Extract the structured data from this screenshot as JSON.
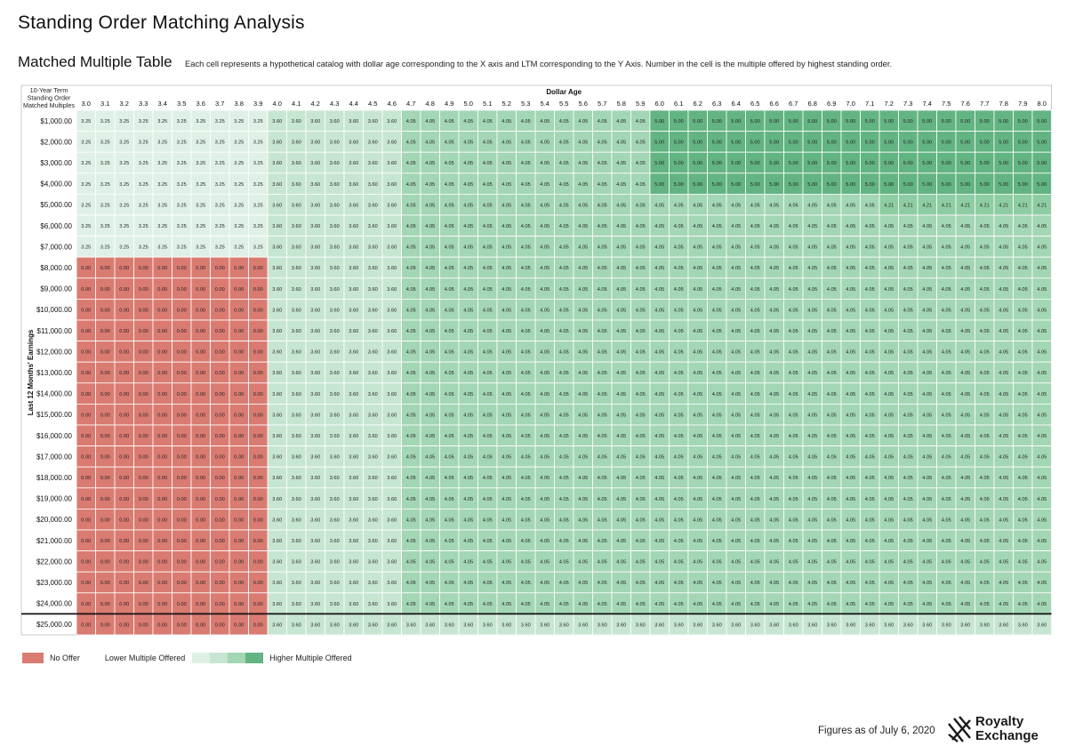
{
  "title": "Standing Order Matching Analysis",
  "subtitle": "Matched Multiple Table",
  "description": "Each cell represents a hypothetical catalog with dollar age corresponding to the X axis and LTM corresponding to the Y Axis. Number in the cell is the multiple offered by highest standing order.",
  "legend": {
    "no_offer": "No Offer",
    "lower": "Lower Multiple Offered",
    "higher": "Higher Multiple Offered"
  },
  "footer": "Figures as of July 6, 2020",
  "logo": {
    "line1": "Royalty",
    "line2": "Exchange"
  },
  "colors": {
    "0": "#da7b72",
    "3.25": "#dff1e6",
    "3.6": "#c7e6d2",
    "4.05": "#a3d6b5",
    "4.21": "#8ecda3",
    "5": "#63b483",
    "header_bg": "#ffffff",
    "grid": "#ffffff"
  },
  "chart_data": {
    "type": "heatmap",
    "corner_label": [
      "10-Year Term",
      "Standing Order",
      "Matched Multiples"
    ],
    "xlabel": "Dollar Age",
    "ylabel": "Last 12 Months' Earnings",
    "x": [
      "3.0",
      "3.1",
      "3.2",
      "3.3",
      "3.4",
      "3.5",
      "3.6",
      "3.7",
      "3.8",
      "3.9",
      "4.0",
      "4.1",
      "4.2",
      "4.3",
      "4.4",
      "4.5",
      "4.6",
      "4.7",
      "4.8",
      "4.9",
      "5.0",
      "5.1",
      "5.2",
      "5.3",
      "5.4",
      "5.5",
      "5.6",
      "5.7",
      "5.8",
      "5.9",
      "6.0",
      "6.1",
      "6.2",
      "6.3",
      "6.4",
      "6.5",
      "6.6",
      "6.7",
      "6.8",
      "6.9",
      "7.0",
      "7.1",
      "7.2",
      "7.3",
      "7.4",
      "7.5",
      "7.6",
      "7.7",
      "7.8",
      "7.9",
      "8.0"
    ],
    "y": [
      "$1,000.00",
      "$2,000.00",
      "$3,000.00",
      "$4,000.00",
      "$5,000.00",
      "$6,000.00",
      "$7,000.00",
      "$8,000.00",
      "$9,000.00",
      "$10,000.00",
      "$11,000.00",
      "$12,000.00",
      "$13,000.00",
      "$14,000.00",
      "$15,000.00",
      "$16,000.00",
      "$17,000.00",
      "$18,000.00",
      "$19,000.00",
      "$20,000.00",
      "$21,000.00",
      "$22,000.00",
      "$23,000.00",
      "$24,000.00",
      "$25,000.00"
    ],
    "values": [
      [
        3.25,
        3.25,
        3.25,
        3.25,
        3.25,
        3.25,
        3.25,
        3.25,
        3.25,
        3.25,
        3.6,
        3.6,
        3.6,
        3.6,
        3.6,
        3.6,
        3.6,
        4.05,
        4.05,
        4.05,
        4.05,
        4.05,
        4.05,
        4.05,
        4.05,
        4.05,
        4.05,
        4.05,
        4.05,
        4.05,
        5.0,
        5.0,
        5.0,
        5.0,
        5.0,
        5.0,
        5.0,
        5.0,
        5.0,
        5.0,
        5.0,
        5.0,
        5.0,
        5.0,
        5.0,
        5.0,
        5.0,
        5.0,
        5.0,
        5.0,
        5.0
      ],
      [
        3.25,
        3.25,
        3.25,
        3.25,
        3.25,
        3.25,
        3.25,
        3.25,
        3.25,
        3.25,
        3.6,
        3.6,
        3.6,
        3.6,
        3.6,
        3.6,
        3.6,
        4.05,
        4.05,
        4.05,
        4.05,
        4.05,
        4.05,
        4.05,
        4.05,
        4.05,
        4.05,
        4.05,
        4.05,
        4.05,
        5.0,
        5.0,
        5.0,
        5.0,
        5.0,
        5.0,
        5.0,
        5.0,
        5.0,
        5.0,
        5.0,
        5.0,
        5.0,
        5.0,
        5.0,
        5.0,
        5.0,
        5.0,
        5.0,
        5.0,
        5.0
      ],
      [
        3.25,
        3.25,
        3.25,
        3.25,
        3.25,
        3.25,
        3.25,
        3.25,
        3.25,
        3.25,
        3.6,
        3.6,
        3.6,
        3.6,
        3.6,
        3.6,
        3.6,
        4.05,
        4.05,
        4.05,
        4.05,
        4.05,
        4.05,
        4.05,
        4.05,
        4.05,
        4.05,
        4.05,
        4.05,
        4.05,
        5.0,
        5.0,
        5.0,
        5.0,
        5.0,
        5.0,
        5.0,
        5.0,
        5.0,
        5.0,
        5.0,
        5.0,
        5.0,
        5.0,
        5.0,
        5.0,
        5.0,
        5.0,
        5.0,
        5.0,
        5.0
      ],
      [
        3.25,
        3.25,
        3.25,
        3.25,
        3.25,
        3.25,
        3.25,
        3.25,
        3.25,
        3.25,
        3.6,
        3.6,
        3.6,
        3.6,
        3.6,
        3.6,
        3.6,
        4.05,
        4.05,
        4.05,
        4.05,
        4.05,
        4.05,
        4.05,
        4.05,
        4.05,
        4.05,
        4.05,
        4.05,
        4.05,
        5.0,
        5.0,
        5.0,
        5.0,
        5.0,
        5.0,
        5.0,
        5.0,
        5.0,
        5.0,
        5.0,
        5.0,
        5.0,
        5.0,
        5.0,
        5.0,
        5.0,
        5.0,
        5.0,
        5.0,
        5.0
      ],
      [
        3.25,
        3.25,
        3.25,
        3.25,
        3.25,
        3.25,
        3.25,
        3.25,
        3.25,
        3.25,
        3.6,
        3.6,
        3.6,
        3.6,
        3.6,
        3.6,
        3.6,
        4.05,
        4.05,
        4.05,
        4.05,
        4.05,
        4.05,
        4.05,
        4.05,
        4.05,
        4.05,
        4.05,
        4.05,
        4.05,
        4.05,
        4.05,
        4.05,
        4.05,
        4.05,
        4.05,
        4.05,
        4.05,
        4.05,
        4.05,
        4.05,
        4.05,
        4.21,
        4.21,
        4.21,
        4.21,
        4.21,
        4.21,
        4.21,
        4.21,
        4.21
      ],
      [
        3.25,
        3.25,
        3.25,
        3.25,
        3.25,
        3.25,
        3.25,
        3.25,
        3.25,
        3.25,
        3.6,
        3.6,
        3.6,
        3.6,
        3.6,
        3.6,
        3.6,
        4.05,
        4.05,
        4.05,
        4.05,
        4.05,
        4.05,
        4.05,
        4.05,
        4.05,
        4.05,
        4.05,
        4.05,
        4.05,
        4.05,
        4.05,
        4.05,
        4.05,
        4.05,
        4.05,
        4.05,
        4.05,
        4.05,
        4.05,
        4.05,
        4.05,
        4.05,
        4.05,
        4.05,
        4.05,
        4.05,
        4.05,
        4.05,
        4.05,
        4.05
      ],
      [
        3.25,
        3.25,
        3.25,
        3.25,
        3.25,
        3.25,
        3.25,
        3.25,
        3.25,
        3.25,
        3.6,
        3.6,
        3.6,
        3.6,
        3.6,
        3.6,
        3.6,
        4.05,
        4.05,
        4.05,
        4.05,
        4.05,
        4.05,
        4.05,
        4.05,
        4.05,
        4.05,
        4.05,
        4.05,
        4.05,
        4.05,
        4.05,
        4.05,
        4.05,
        4.05,
        4.05,
        4.05,
        4.05,
        4.05,
        4.05,
        4.05,
        4.05,
        4.05,
        4.05,
        4.05,
        4.05,
        4.05,
        4.05,
        4.05,
        4.05,
        4.05
      ],
      [
        0.0,
        0.0,
        0.0,
        0.0,
        0.0,
        0.0,
        0.0,
        0.0,
        0.0,
        0.0,
        3.6,
        3.6,
        3.6,
        3.6,
        3.6,
        3.6,
        3.6,
        4.05,
        4.05,
        4.05,
        4.05,
        4.05,
        4.05,
        4.05,
        4.05,
        4.05,
        4.05,
        4.05,
        4.05,
        4.05,
        4.05,
        4.05,
        4.05,
        4.05,
        4.05,
        4.05,
        4.05,
        4.05,
        4.05,
        4.05,
        4.05,
        4.05,
        4.05,
        4.05,
        4.05,
        4.05,
        4.05,
        4.05,
        4.05,
        4.05,
        4.05
      ],
      [
        0.0,
        0.0,
        0.0,
        0.0,
        0.0,
        0.0,
        0.0,
        0.0,
        0.0,
        0.0,
        3.6,
        3.6,
        3.6,
        3.6,
        3.6,
        3.6,
        3.6,
        4.05,
        4.05,
        4.05,
        4.05,
        4.05,
        4.05,
        4.05,
        4.05,
        4.05,
        4.05,
        4.05,
        4.05,
        4.05,
        4.05,
        4.05,
        4.05,
        4.05,
        4.05,
        4.05,
        4.05,
        4.05,
        4.05,
        4.05,
        4.05,
        4.05,
        4.05,
        4.05,
        4.05,
        4.05,
        4.05,
        4.05,
        4.05,
        4.05,
        4.05
      ],
      [
        0.0,
        0.0,
        0.0,
        0.0,
        0.0,
        0.0,
        0.0,
        0.0,
        0.0,
        0.0,
        3.6,
        3.6,
        3.6,
        3.6,
        3.6,
        3.6,
        3.6,
        4.05,
        4.05,
        4.05,
        4.05,
        4.05,
        4.05,
        4.05,
        4.05,
        4.05,
        4.05,
        4.05,
        4.05,
        4.05,
        4.05,
        4.05,
        4.05,
        4.05,
        4.05,
        4.05,
        4.05,
        4.05,
        4.05,
        4.05,
        4.05,
        4.05,
        4.05,
        4.05,
        4.05,
        4.05,
        4.05,
        4.05,
        4.05,
        4.05,
        4.05
      ],
      [
        0.0,
        0.0,
        0.0,
        0.0,
        0.0,
        0.0,
        0.0,
        0.0,
        0.0,
        0.0,
        3.6,
        3.6,
        3.6,
        3.6,
        3.6,
        3.6,
        3.6,
        4.05,
        4.05,
        4.05,
        4.05,
        4.05,
        4.05,
        4.05,
        4.05,
        4.05,
        4.05,
        4.05,
        4.05,
        4.05,
        4.05,
        4.05,
        4.05,
        4.05,
        4.05,
        4.05,
        4.05,
        4.05,
        4.05,
        4.05,
        4.05,
        4.05,
        4.05,
        4.05,
        4.05,
        4.05,
        4.05,
        4.05,
        4.05,
        4.05,
        4.05
      ],
      [
        0.0,
        0.0,
        0.0,
        0.0,
        0.0,
        0.0,
        0.0,
        0.0,
        0.0,
        0.0,
        3.6,
        3.6,
        3.6,
        3.6,
        3.6,
        3.6,
        3.6,
        4.05,
        4.05,
        4.05,
        4.05,
        4.05,
        4.05,
        4.05,
        4.05,
        4.05,
        4.05,
        4.05,
        4.05,
        4.05,
        4.05,
        4.05,
        4.05,
        4.05,
        4.05,
        4.05,
        4.05,
        4.05,
        4.05,
        4.05,
        4.05,
        4.05,
        4.05,
        4.05,
        4.05,
        4.05,
        4.05,
        4.05,
        4.05,
        4.05,
        4.05
      ],
      [
        0.0,
        0.0,
        0.0,
        0.0,
        0.0,
        0.0,
        0.0,
        0.0,
        0.0,
        0.0,
        3.6,
        3.6,
        3.6,
        3.6,
        3.6,
        3.6,
        3.6,
        4.05,
        4.05,
        4.05,
        4.05,
        4.05,
        4.05,
        4.05,
        4.05,
        4.05,
        4.05,
        4.05,
        4.05,
        4.05,
        4.05,
        4.05,
        4.05,
        4.05,
        4.05,
        4.05,
        4.05,
        4.05,
        4.05,
        4.05,
        4.05,
        4.05,
        4.05,
        4.05,
        4.05,
        4.05,
        4.05,
        4.05,
        4.05,
        4.05,
        4.05
      ],
      [
        0.0,
        0.0,
        0.0,
        0.0,
        0.0,
        0.0,
        0.0,
        0.0,
        0.0,
        0.0,
        3.6,
        3.6,
        3.6,
        3.6,
        3.6,
        3.6,
        3.6,
        4.05,
        4.05,
        4.05,
        4.05,
        4.05,
        4.05,
        4.05,
        4.05,
        4.05,
        4.05,
        4.05,
        4.05,
        4.05,
        4.05,
        4.05,
        4.05,
        4.05,
        4.05,
        4.05,
        4.05,
        4.05,
        4.05,
        4.05,
        4.05,
        4.05,
        4.05,
        4.05,
        4.05,
        4.05,
        4.05,
        4.05,
        4.05,
        4.05,
        4.05
      ],
      [
        0.0,
        0.0,
        0.0,
        0.0,
        0.0,
        0.0,
        0.0,
        0.0,
        0.0,
        0.0,
        3.6,
        3.6,
        3.6,
        3.6,
        3.6,
        3.6,
        3.6,
        4.05,
        4.05,
        4.05,
        4.05,
        4.05,
        4.05,
        4.05,
        4.05,
        4.05,
        4.05,
        4.05,
        4.05,
        4.05,
        4.05,
        4.05,
        4.05,
        4.05,
        4.05,
        4.05,
        4.05,
        4.05,
        4.05,
        4.05,
        4.05,
        4.05,
        4.05,
        4.05,
        4.05,
        4.05,
        4.05,
        4.05,
        4.05,
        4.05,
        4.05
      ],
      [
        0.0,
        0.0,
        0.0,
        0.0,
        0.0,
        0.0,
        0.0,
        0.0,
        0.0,
        0.0,
        3.6,
        3.6,
        3.6,
        3.6,
        3.6,
        3.6,
        3.6,
        4.05,
        4.05,
        4.05,
        4.05,
        4.05,
        4.05,
        4.05,
        4.05,
        4.05,
        4.05,
        4.05,
        4.05,
        4.05,
        4.05,
        4.05,
        4.05,
        4.05,
        4.05,
        4.05,
        4.05,
        4.05,
        4.05,
        4.05,
        4.05,
        4.05,
        4.05,
        4.05,
        4.05,
        4.05,
        4.05,
        4.05,
        4.05,
        4.05,
        4.05
      ],
      [
        0.0,
        0.0,
        0.0,
        0.0,
        0.0,
        0.0,
        0.0,
        0.0,
        0.0,
        0.0,
        3.6,
        3.6,
        3.6,
        3.6,
        3.6,
        3.6,
        3.6,
        4.05,
        4.05,
        4.05,
        4.05,
        4.05,
        4.05,
        4.05,
        4.05,
        4.05,
        4.05,
        4.05,
        4.05,
        4.05,
        4.05,
        4.05,
        4.05,
        4.05,
        4.05,
        4.05,
        4.05,
        4.05,
        4.05,
        4.05,
        4.05,
        4.05,
        4.05,
        4.05,
        4.05,
        4.05,
        4.05,
        4.05,
        4.05,
        4.05,
        4.05
      ],
      [
        0.0,
        0.0,
        0.0,
        0.0,
        0.0,
        0.0,
        0.0,
        0.0,
        0.0,
        0.0,
        3.6,
        3.6,
        3.6,
        3.6,
        3.6,
        3.6,
        3.6,
        4.05,
        4.05,
        4.05,
        4.05,
        4.05,
        4.05,
        4.05,
        4.05,
        4.05,
        4.05,
        4.05,
        4.05,
        4.05,
        4.05,
        4.05,
        4.05,
        4.05,
        4.05,
        4.05,
        4.05,
        4.05,
        4.05,
        4.05,
        4.05,
        4.05,
        4.05,
        4.05,
        4.05,
        4.05,
        4.05,
        4.05,
        4.05,
        4.05,
        4.05
      ],
      [
        0.0,
        0.0,
        0.0,
        0.0,
        0.0,
        0.0,
        0.0,
        0.0,
        0.0,
        0.0,
        3.6,
        3.6,
        3.6,
        3.6,
        3.6,
        3.6,
        3.6,
        4.05,
        4.05,
        4.05,
        4.05,
        4.05,
        4.05,
        4.05,
        4.05,
        4.05,
        4.05,
        4.05,
        4.05,
        4.05,
        4.05,
        4.05,
        4.05,
        4.05,
        4.05,
        4.05,
        4.05,
        4.05,
        4.05,
        4.05,
        4.05,
        4.05,
        4.05,
        4.05,
        4.05,
        4.05,
        4.05,
        4.05,
        4.05,
        4.05,
        4.05
      ],
      [
        0.0,
        0.0,
        0.0,
        0.0,
        0.0,
        0.0,
        0.0,
        0.0,
        0.0,
        0.0,
        3.6,
        3.6,
        3.6,
        3.6,
        3.6,
        3.6,
        3.6,
        4.05,
        4.05,
        4.05,
        4.05,
        4.05,
        4.05,
        4.05,
        4.05,
        4.05,
        4.05,
        4.05,
        4.05,
        4.05,
        4.05,
        4.05,
        4.05,
        4.05,
        4.05,
        4.05,
        4.05,
        4.05,
        4.05,
        4.05,
        4.05,
        4.05,
        4.05,
        4.05,
        4.05,
        4.05,
        4.05,
        4.05,
        4.05,
        4.05,
        4.05
      ],
      [
        0.0,
        0.0,
        0.0,
        0.0,
        0.0,
        0.0,
        0.0,
        0.0,
        0.0,
        0.0,
        3.6,
        3.6,
        3.6,
        3.6,
        3.6,
        3.6,
        3.6,
        4.05,
        4.05,
        4.05,
        4.05,
        4.05,
        4.05,
        4.05,
        4.05,
        4.05,
        4.05,
        4.05,
        4.05,
        4.05,
        4.05,
        4.05,
        4.05,
        4.05,
        4.05,
        4.05,
        4.05,
        4.05,
        4.05,
        4.05,
        4.05,
        4.05,
        4.05,
        4.05,
        4.05,
        4.05,
        4.05,
        4.05,
        4.05,
        4.05,
        4.05
      ],
      [
        0.0,
        0.0,
        0.0,
        0.0,
        0.0,
        0.0,
        0.0,
        0.0,
        0.0,
        0.0,
        3.6,
        3.6,
        3.6,
        3.6,
        3.6,
        3.6,
        3.6,
        4.05,
        4.05,
        4.05,
        4.05,
        4.05,
        4.05,
        4.05,
        4.05,
        4.05,
        4.05,
        4.05,
        4.05,
        4.05,
        4.05,
        4.05,
        4.05,
        4.05,
        4.05,
        4.05,
        4.05,
        4.05,
        4.05,
        4.05,
        4.05,
        4.05,
        4.05,
        4.05,
        4.05,
        4.05,
        4.05,
        4.05,
        4.05,
        4.05,
        4.05
      ],
      [
        0.0,
        0.0,
        0.0,
        0.0,
        0.0,
        0.0,
        0.0,
        0.0,
        0.0,
        0.0,
        3.6,
        3.6,
        3.6,
        3.6,
        3.6,
        3.6,
        3.6,
        4.05,
        4.05,
        4.05,
        4.05,
        4.05,
        4.05,
        4.05,
        4.05,
        4.05,
        4.05,
        4.05,
        4.05,
        4.05,
        4.05,
        4.05,
        4.05,
        4.05,
        4.05,
        4.05,
        4.05,
        4.05,
        4.05,
        4.05,
        4.05,
        4.05,
        4.05,
        4.05,
        4.05,
        4.05,
        4.05,
        4.05,
        4.05,
        4.05,
        4.05
      ],
      [
        0.0,
        0.0,
        0.0,
        0.0,
        0.0,
        0.0,
        0.0,
        0.0,
        0.0,
        0.0,
        3.6,
        3.6,
        3.6,
        3.6,
        3.6,
        3.6,
        3.6,
        4.05,
        4.05,
        4.05,
        4.05,
        4.05,
        4.05,
        4.05,
        4.05,
        4.05,
        4.05,
        4.05,
        4.05,
        4.05,
        4.05,
        4.05,
        4.05,
        4.05,
        4.05,
        4.05,
        4.05,
        4.05,
        4.05,
        4.05,
        4.05,
        4.05,
        4.05,
        4.05,
        4.05,
        4.05,
        4.05,
        4.05,
        4.05,
        4.05,
        4.05
      ],
      [
        0.0,
        0.0,
        0.0,
        0.0,
        0.0,
        0.0,
        0.0,
        0.0,
        0.0,
        0.0,
        3.6,
        3.6,
        3.6,
        3.6,
        3.6,
        3.6,
        3.6,
        3.6,
        3.6,
        3.6,
        3.6,
        3.6,
        3.6,
        3.6,
        3.6,
        3.6,
        3.6,
        3.6,
        3.6,
        3.6,
        3.6,
        3.6,
        3.6,
        3.6,
        3.6,
        3.6,
        3.6,
        3.6,
        3.6,
        3.6,
        3.6,
        3.6,
        3.6,
        3.6,
        3.6,
        3.6,
        3.6,
        3.6,
        3.6,
        3.6,
        3.6
      ]
    ]
  }
}
